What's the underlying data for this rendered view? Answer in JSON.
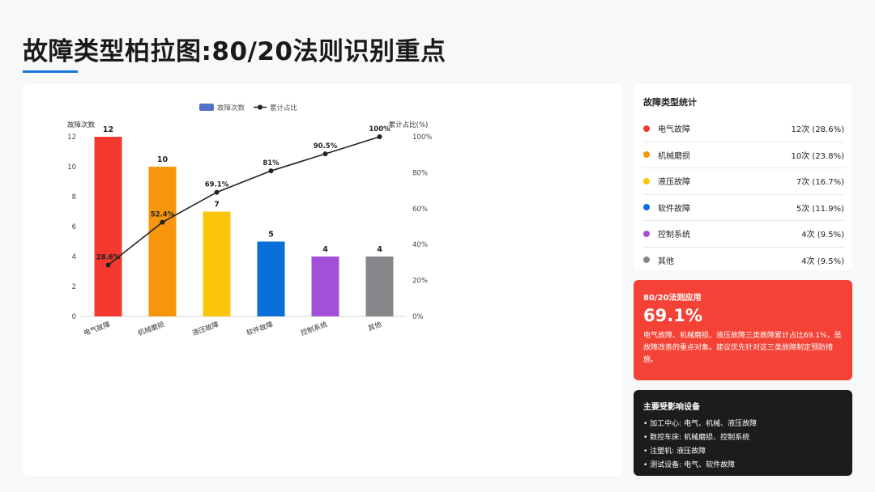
{
  "page": {
    "title": "故障类型柏拉图:80/20法则识别重点"
  },
  "chart_data": {
    "type": "bar",
    "categories": [
      "电气故障",
      "机械磨损",
      "液压故障",
      "软件故障",
      "控制系统",
      "其他"
    ],
    "series": [
      {
        "name": "故障次数",
        "kind": "bar",
        "axis": "left",
        "values": [
          12,
          10,
          7,
          5,
          4,
          4
        ],
        "colors": [
          "#f43a2f",
          "#f7950c",
          "#fbc60a",
          "#0b6fd9",
          "#a350d8",
          "#86878a"
        ]
      },
      {
        "name": "累计占比",
        "kind": "line",
        "axis": "right",
        "values": [
          28.6,
          52.4,
          69.1,
          81,
          90.5,
          100
        ],
        "labels": [
          "28.6%",
          "52.4%",
          "69.1%",
          "81%",
          "90.5%",
          "100%"
        ],
        "color": "#222222"
      }
    ],
    "bar_labels": [
      "12",
      "10",
      "7",
      "5",
      "4",
      "4"
    ],
    "ylabel_left": "故障次数",
    "ylabel_right": "累计占比(%)",
    "ylim_left": [
      0,
      12
    ],
    "ylim_right": [
      0,
      100
    ],
    "yticks_left": [
      "0",
      "2",
      "4",
      "6",
      "8",
      "10",
      "12"
    ],
    "yticks_right": [
      "0%",
      "20%",
      "40%",
      "60%",
      "80%",
      "100%"
    ],
    "legend": {
      "bar_label": "故障次数",
      "line_label": "累计占比",
      "bar_color": "#5470c6",
      "placement": "top-center"
    },
    "grid": false
  },
  "stats": {
    "title": "故障类型统计",
    "items": [
      {
        "name": "电气故障",
        "value": "12次 (28.6%)",
        "color": "#f43a2f"
      },
      {
        "name": "机械磨损",
        "value": "10次 (23.8%)",
        "color": "#f7950c"
      },
      {
        "name": "液压故障",
        "value": "7次 (16.7%)",
        "color": "#fbc60a"
      },
      {
        "name": "软件故障",
        "value": "5次 (11.9%)",
        "color": "#0b6fd9"
      },
      {
        "name": "控制系统",
        "value": "4次 (9.5%)",
        "color": "#a350d8"
      },
      {
        "name": "其他",
        "value": "4次 (9.5%)",
        "color": "#86878a"
      }
    ]
  },
  "rule": {
    "title": "80/20法则应用",
    "value": "69.1%",
    "description": "电气故障、机械磨损、液压故障三类故障累计占比69.1%，是故障改善的重点对象。建议优先针对这三类故障制定预防措施。",
    "color": "#f44336"
  },
  "devices": {
    "title": "主要受影响设备",
    "items": [
      "• 加工中心: 电气、机械、液压故障",
      "• 数控车床: 机械磨损、控制系统",
      "• 注塑机: 液压故障",
      "• 测试设备: 电气、软件故障"
    ]
  }
}
